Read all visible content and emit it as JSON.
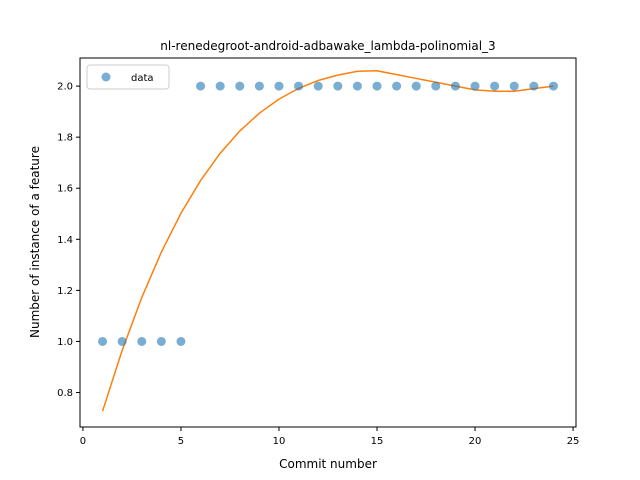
{
  "chart_data": {
    "type": "scatter",
    "title": "nl-renedegroot-android-adbawake_lambda-polinomial_3",
    "xlabel": "Commit number",
    "ylabel": "Number of instance of a feature",
    "xlim": [
      -0.15,
      25.15
    ],
    "ylim": [
      0.665,
      2.11
    ],
    "xticks": [
      0,
      5,
      10,
      15,
      20,
      25
    ],
    "yticks": [
      0.8,
      1.0,
      1.2,
      1.4,
      1.6,
      1.8,
      2.0
    ],
    "grid": false,
    "legend_position": "top-left",
    "series": [
      {
        "name": "data",
        "kind": "scatter",
        "color": "#1f77b4",
        "x": [
          1,
          2,
          3,
          4,
          5,
          6,
          7,
          8,
          9,
          10,
          11,
          12,
          13,
          14,
          15,
          16,
          17,
          18,
          19,
          20,
          21,
          22,
          23,
          24
        ],
        "y": [
          1,
          1,
          1,
          1,
          1,
          2,
          2,
          2,
          2,
          2,
          2,
          2,
          2,
          2,
          2,
          2,
          2,
          2,
          2,
          2,
          2,
          2,
          2,
          2
        ]
      },
      {
        "kind": "line",
        "color": "#ff7f0e",
        "x": [
          1,
          2,
          3,
          4,
          5,
          6,
          7,
          8,
          9,
          10,
          11,
          12,
          13,
          14,
          15,
          16,
          17,
          18,
          19,
          20,
          21,
          22,
          23,
          24
        ],
        "y": [
          0.727,
          0.965,
          1.172,
          1.35,
          1.502,
          1.63,
          1.737,
          1.824,
          1.894,
          1.949,
          1.991,
          2.022,
          2.043,
          2.058,
          2.06,
          2.045,
          2.03,
          2.015,
          2.0,
          1.985,
          1.98,
          1.98,
          1.99,
          2.0
        ]
      }
    ]
  }
}
